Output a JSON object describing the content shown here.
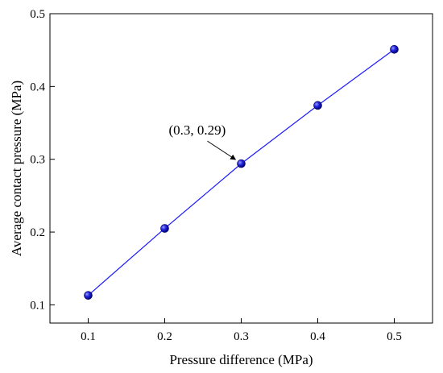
{
  "chart_data": {
    "type": "line",
    "xlabel": "Pressure difference (MPa)",
    "ylabel": "Average contact pressure (MPa)",
    "xlim": [
      0.05,
      0.55
    ],
    "ylim": [
      0.075,
      0.5
    ],
    "xticks": [
      0.1,
      0.2,
      0.3,
      0.4,
      0.5
    ],
    "yticks": [
      0.1,
      0.2,
      0.3,
      0.4,
      0.5
    ],
    "xtick_labels": [
      "0.1",
      "0.2",
      "0.3",
      "0.4",
      "0.5"
    ],
    "ytick_labels": [
      "0.1",
      "0.2",
      "0.3",
      "0.4",
      "0.5"
    ],
    "series": [
      {
        "x": [
          0.1,
          0.2,
          0.3,
          0.4,
          0.5
        ],
        "values": [
          0.113,
          0.205,
          0.294,
          0.374,
          0.451
        ],
        "color": "#1a1aff",
        "marker": "sphere"
      }
    ],
    "annotations": [
      {
        "text": "(0.3, 0.29)",
        "x": 0.3,
        "y": 0.294,
        "arrow": true
      }
    ],
    "grid": false,
    "legend": "none"
  }
}
